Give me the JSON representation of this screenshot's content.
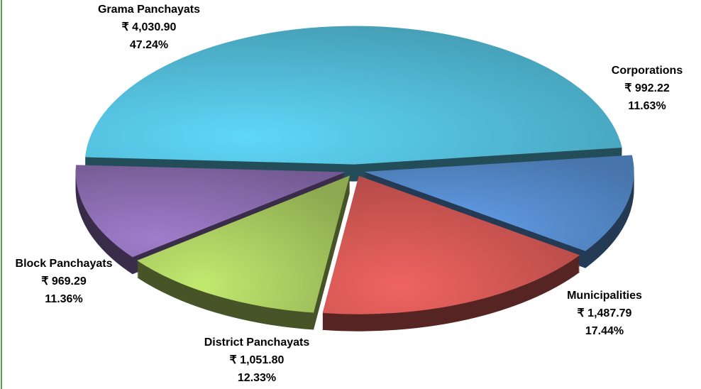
{
  "chart_data": {
    "type": "pie",
    "categories": [
      "Grama Panchayats",
      "Corporations",
      "Municipalities",
      "District Panchayats",
      "Block Panchayats"
    ],
    "values": [
      4030.9,
      992.22,
      1487.79,
      1051.8,
      969.29
    ],
    "value_labels": [
      "₹ 4,030.90",
      "₹ 992.22",
      "₹ 1,487.79",
      "₹ 1,051.80",
      "₹ 969.29"
    ],
    "percentages": [
      47.24,
      11.63,
      17.44,
      12.33,
      11.36
    ],
    "percent_labels": [
      "47.24%",
      "11.63%",
      "17.44%",
      "12.33%",
      "11.36%"
    ],
    "colors": [
      "#4bacc6",
      "#4f81bd",
      "#c0504d",
      "#9bbb59",
      "#8064a2"
    ]
  }
}
